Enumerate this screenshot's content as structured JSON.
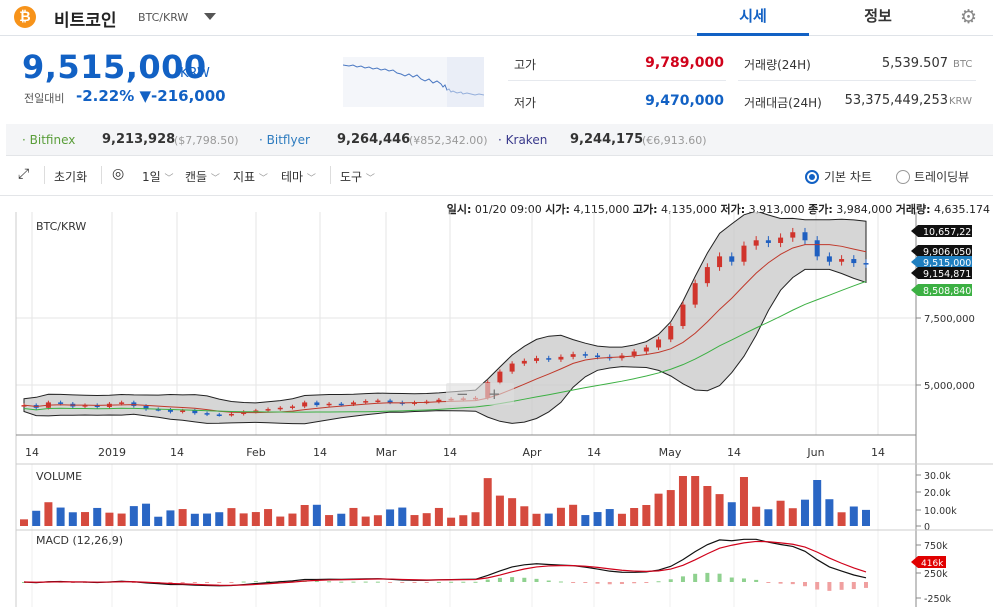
{
  "header": {
    "coin_name": "비트코인",
    "pair": "BTC/KRW",
    "tabs": [
      "시세",
      "정보"
    ]
  },
  "price": {
    "current": "9,515,000",
    "unit": "KRW",
    "change_label": "전일대비",
    "change_pct": "-2.22%",
    "change_arrow": "▼",
    "change_amt": "-216,000"
  },
  "stats": {
    "high_label": "고가",
    "high": "9,789,000",
    "low_label": "저가",
    "low": "9,470,000",
    "vol_label": "거래량(24H)",
    "vol": "5,539.507",
    "vol_unit": "BTC",
    "amt_label": "거래대금(24H)",
    "amt": "53,375,449,253",
    "amt_unit": "KRW"
  },
  "exchanges": [
    {
      "name": "Bitfinex",
      "price": "9,213,928",
      "sub": "($7,798.50)"
    },
    {
      "name": "Bitflyer",
      "price": "9,264,446",
      "sub": "(¥852,342.00)"
    },
    {
      "name": "Kraken",
      "price": "9,244,175",
      "sub": "(€6,913.60)"
    }
  ],
  "toolbar": {
    "reset": "초기화",
    "interval": "1일",
    "candle": "캔들",
    "indicator": "지표",
    "theme": "테마",
    "tools": "도구",
    "basic_chart": "기본 차트",
    "trading_view": "트레이딩뷰"
  },
  "chart_data": {
    "type": "candlestick",
    "pair_label": "BTC/KRW",
    "ohlc_info": {
      "date_label": "일시:",
      "date": "01/20 09:00",
      "open_label": "시가:",
      "open": "4,115,000",
      "high_label": "고가:",
      "high": "4,135,000",
      "low_label": "저가:",
      "low": "3,913,000",
      "close_label": "종가:",
      "close": "3,984,000",
      "volume_label": "거래량:",
      "volume": "4,635.174"
    },
    "x_ticks": [
      "14",
      "2019",
      "14",
      "Feb",
      "14",
      "Mar",
      "14",
      "Apr",
      "14",
      "May",
      "14",
      "Jun",
      "14"
    ],
    "y_ticks": [
      "7,500,000",
      "5,000,000"
    ],
    "price_tags": {
      "bb_upper": "10,657,229",
      "ma_mid": "9,906,050",
      "last": "9,515,000",
      "bb_lower": "9,154,871",
      "ma_long": "8,508,840"
    },
    "series": [
      {
        "name": "close",
        "values": [
          4250000,
          4150000,
          4350000,
          4300000,
          4200000,
          4250000,
          4180000,
          4300000,
          4350000,
          4220000,
          4100000,
          4080000,
          4000000,
          4050000,
          3950000,
          3900000,
          3880000,
          3920000,
          4000000,
          4050000,
          4100000,
          4150000,
          4200000,
          4350000,
          4250000,
          4300000,
          4280000,
          4350000,
          4400000,
          4420000,
          4350000,
          4300000,
          4350000,
          4380000,
          4450000,
          4480000,
          4500000,
          4520000,
          5100000,
          5500000,
          5800000,
          5900000,
          6000000,
          5950000,
          6050000,
          6150000,
          6100000,
          6050000,
          6000000,
          6100000,
          6250000,
          6400000,
          6700000,
          7200000,
          8000000,
          8800000,
          9400000,
          9800000,
          9600000,
          10200000,
          10400000,
          10300000,
          10500000,
          10700000,
          10400000,
          9800000,
          9600000,
          9700000,
          9550000,
          9515000
        ]
      },
      {
        "name": "VOLUME",
        "y_ticks": [
          "30.0k",
          "20.0k",
          "10.00k",
          "0"
        ]
      },
      {
        "name": "MACD (12,26,9)",
        "y_ticks": [
          "750k",
          "416k",
          "250k",
          "-250k"
        ]
      }
    ]
  }
}
